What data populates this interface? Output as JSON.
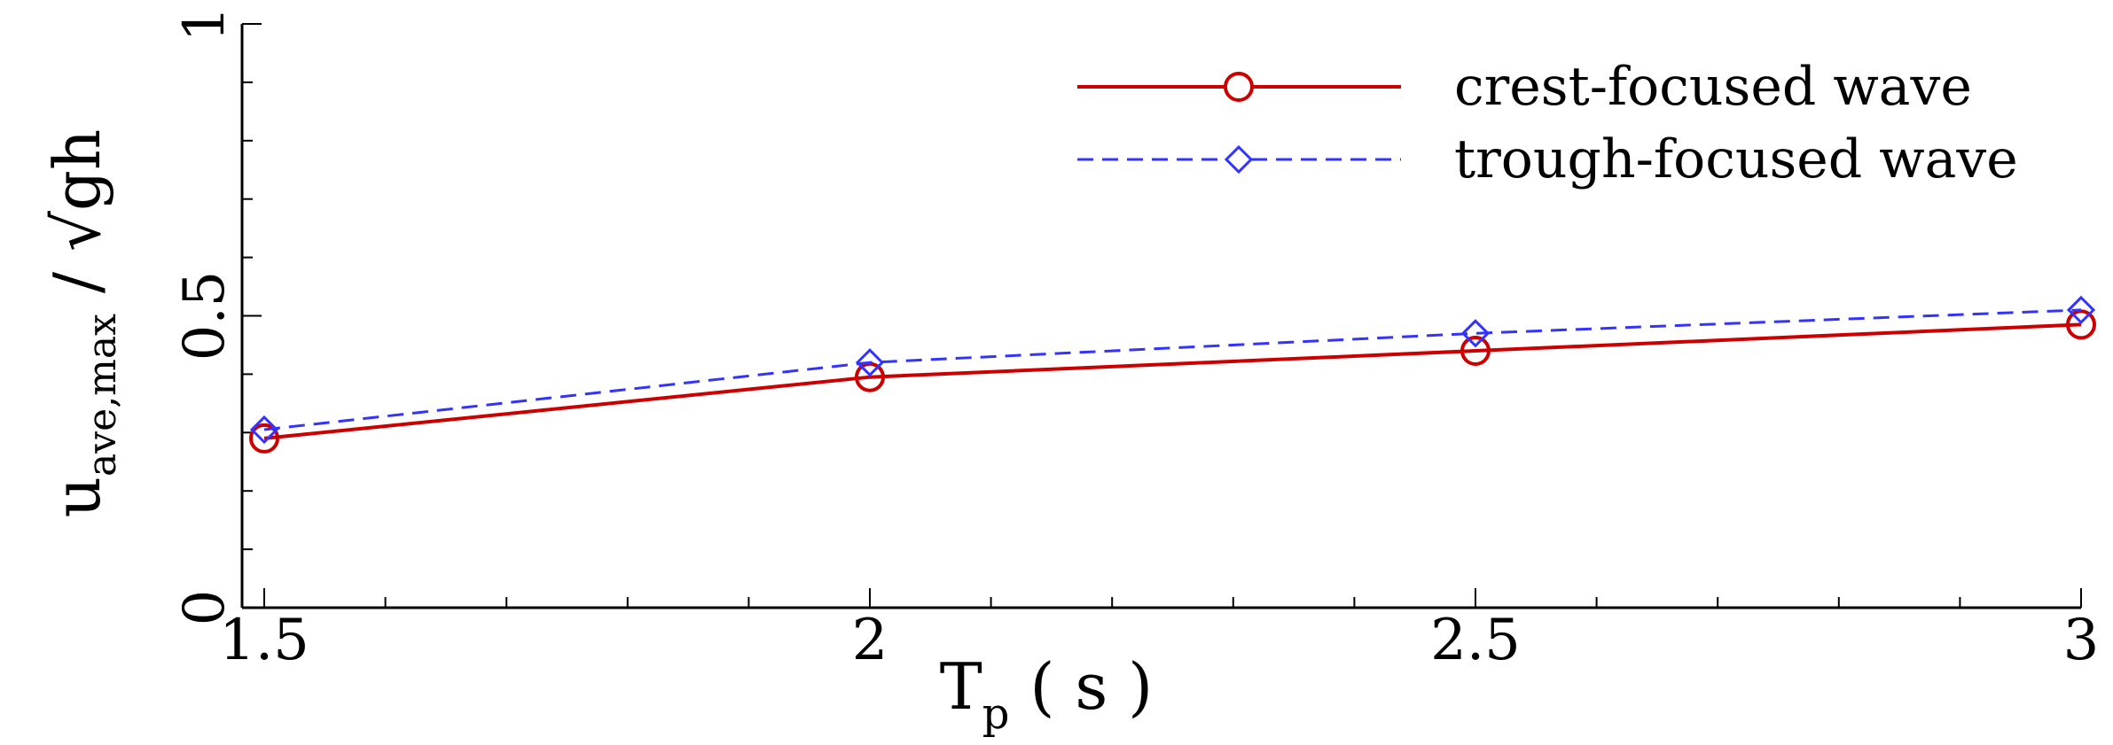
{
  "chart_data": {
    "type": "line",
    "title": "",
    "x": [
      1.5,
      2,
      2.5,
      3
    ],
    "series": [
      {
        "name": "crest-focused wave",
        "values": [
          0.29,
          0.395,
          0.44,
          0.485
        ],
        "color": "#cc0000",
        "marker": "circle",
        "dash": "solid"
      },
      {
        "name": "trough-focused wave",
        "values": [
          0.305,
          0.42,
          0.47,
          0.51
        ],
        "color": "#3333ff",
        "marker": "diamond",
        "dash": "dashed"
      }
    ],
    "xlabel": {
      "main": "T",
      "sub": "p",
      "unit": " ( s )"
    },
    "ylabel": {
      "main": "u",
      "sub": "ave,max",
      "rest": " / √gh"
    },
    "xlim": [
      1.5,
      3
    ],
    "ylim": [
      0,
      1
    ],
    "x_ticks": [
      "1.5",
      "2",
      "2.5",
      "3"
    ],
    "y_ticks": [
      "0",
      "0.5",
      "1"
    ],
    "grid": false,
    "legend_position": "top-right"
  }
}
